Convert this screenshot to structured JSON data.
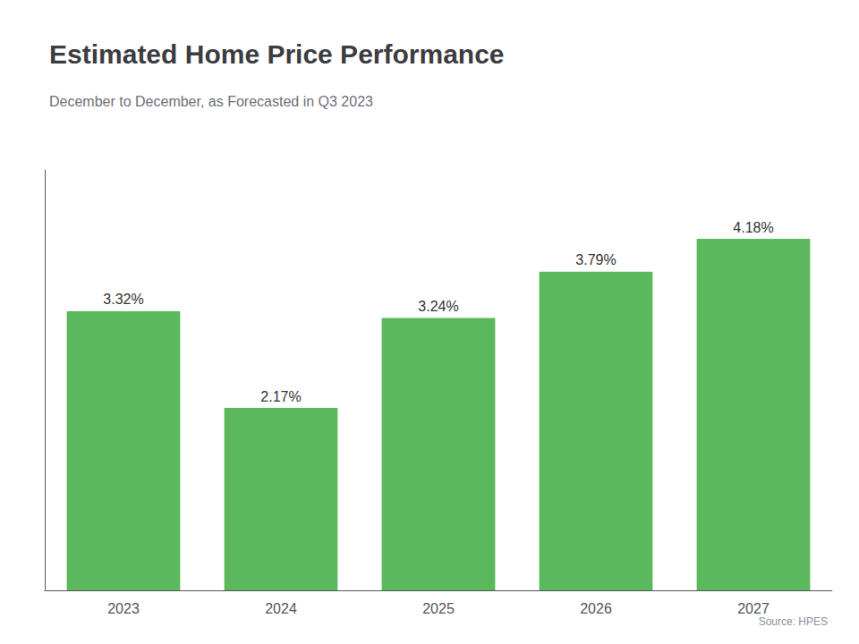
{
  "chart_data": {
    "type": "bar",
    "title": "Estimated Home Price Performance",
    "subtitle": "December to December, as Forecasted in Q3 2023",
    "source": "Source: HPES",
    "categories": [
      "2023",
      "2024",
      "2025",
      "2026",
      "2027"
    ],
    "values": [
      3.32,
      2.17,
      3.24,
      3.79,
      4.18
    ],
    "value_labels": [
      "3.32%",
      "2.17%",
      "3.24%",
      "3.79%",
      "4.18%"
    ],
    "data_labels": true,
    "color": "#5cb85c",
    "ylim": [
      0,
      5.0
    ],
    "grid": false,
    "tick_labels": "x"
  }
}
